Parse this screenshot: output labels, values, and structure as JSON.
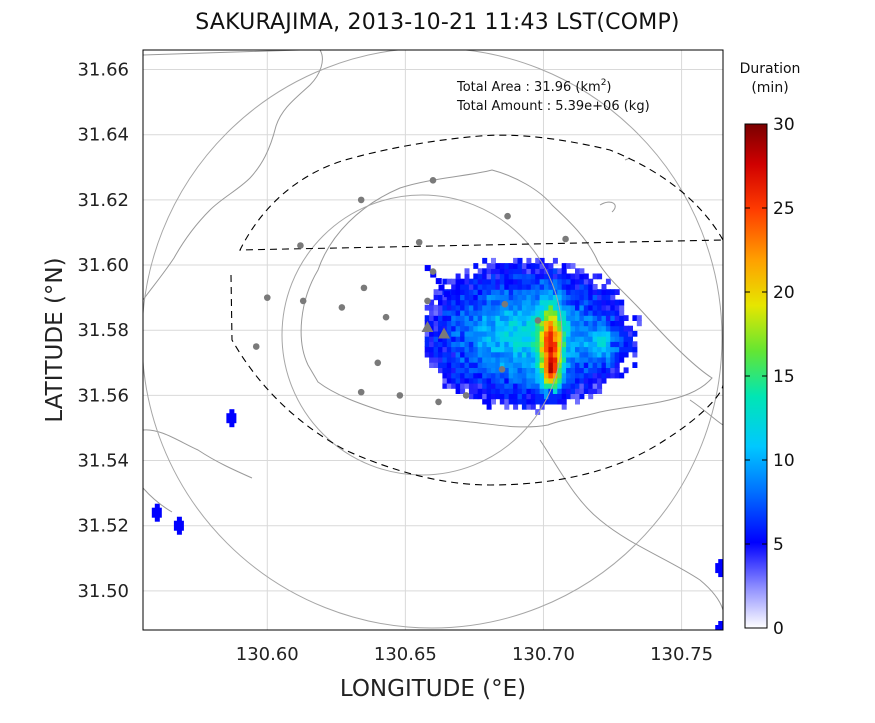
{
  "title": "SAKURAJIMA, 2013-10-21 11:43 LST(COMP)",
  "axes": {
    "xlabel": "LONGITUDE (°E)",
    "ylabel": "LATITUDE (°N)",
    "xlim": [
      130.555,
      130.765
    ],
    "ylim": [
      31.488,
      31.666
    ],
    "xticks": [
      "130.60",
      "130.65",
      "130.70",
      "130.75"
    ],
    "yticks": [
      "31.50",
      "31.52",
      "31.54",
      "31.56",
      "31.58",
      "31.60",
      "31.62",
      "31.64",
      "31.66"
    ],
    "grid": true
  },
  "info": {
    "area_label": "Total Area   : 31.96",
    "area_unit_base": "(km",
    "area_unit_exp": "2",
    "area_unit_close": ")",
    "amount_line": "Total Amount : 5.39e+06 (kg)"
  },
  "colorbar": {
    "title_line1": "Duration",
    "title_line2": "(min)",
    "ticks": [
      "0",
      "5",
      "10",
      "15",
      "20",
      "25",
      "30"
    ],
    "min": 0,
    "max": 30
  },
  "colors": {
    "grid": "#d9d9d9",
    "coast": "#9a9a9a",
    "ring": "#a6a6a6",
    "stations": "#7a7a7a",
    "boundary": "#000000"
  },
  "markers": {
    "crater_triangles": [
      [
        130.658,
        31.581
      ],
      [
        130.664,
        31.579
      ]
    ],
    "stations": [
      [
        130.66,
        31.626
      ],
      [
        130.634,
        31.62
      ],
      [
        130.612,
        31.606
      ],
      [
        130.655,
        31.607
      ],
      [
        130.687,
        31.615
      ],
      [
        130.708,
        31.608
      ],
      [
        130.66,
        31.598
      ],
      [
        130.6,
        31.59
      ],
      [
        130.613,
        31.589
      ],
      [
        130.627,
        31.587
      ],
      [
        130.635,
        31.593
      ],
      [
        130.643,
        31.584
      ],
      [
        130.658,
        31.589
      ],
      [
        130.686,
        31.588
      ],
      [
        130.698,
        31.583
      ],
      [
        130.596,
        31.575
      ],
      [
        130.64,
        31.57
      ],
      [
        130.685,
        31.568
      ],
      [
        130.634,
        31.561
      ],
      [
        130.648,
        31.56
      ],
      [
        130.662,
        31.558
      ],
      [
        130.672,
        31.56
      ]
    ]
  },
  "chart_data": {
    "type": "heatmap",
    "description_of_values": "ash fall duration (min)",
    "main_plume": {
      "center": [
        130.693,
        31.578
      ],
      "lon_extent": [
        130.661,
        130.74
      ],
      "lat_extent": [
        31.555,
        31.6
      ],
      "peak_duration": 30,
      "peak_location": [
        130.702,
        31.566
      ]
    },
    "isolated_cells": [
      {
        "lon": 130.587,
        "lat": 31.553,
        "duration": 5
      },
      {
        "lon": 130.56,
        "lat": 31.524,
        "duration": 5
      },
      {
        "lon": 130.568,
        "lat": 31.52,
        "duration": 5
      },
      {
        "lon": 130.764,
        "lat": 31.507,
        "duration": 5
      },
      {
        "lon": 130.764,
        "lat": 31.488,
        "duration": 5
      }
    ]
  }
}
